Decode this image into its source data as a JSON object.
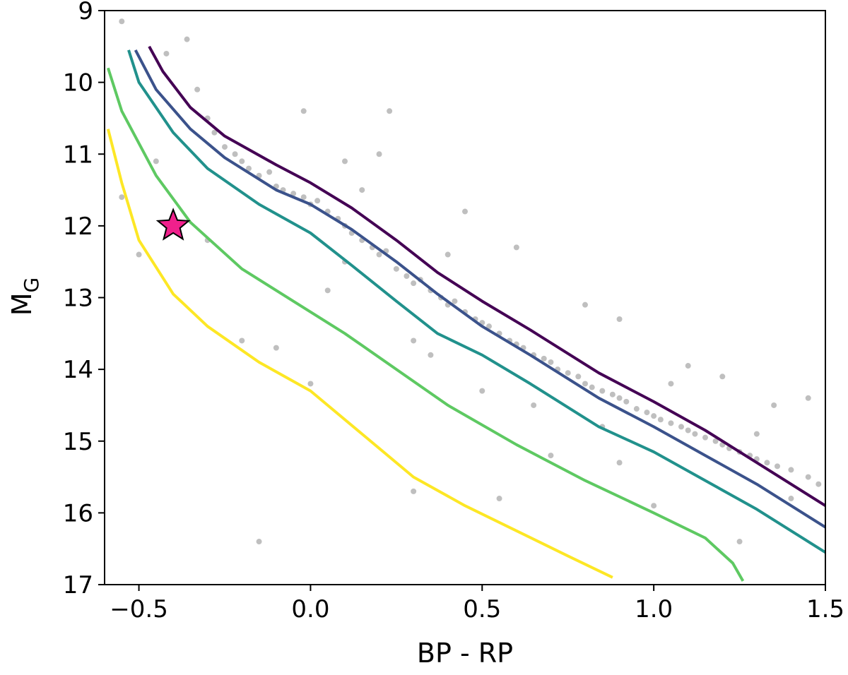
{
  "chart_data": {
    "type": "scatter",
    "xlabel": "BP - RP",
    "ylabel": "M",
    "ylabel_subscript": "G",
    "xlim": [
      -0.6,
      1.5
    ],
    "xticks": [
      {
        "value": -0.5,
        "label": "−0.5"
      },
      {
        "value": 0,
        "label": "0.0"
      },
      0.5,
      {
        "value": 1,
        "label": "1.0"
      },
      1.5
    ],
    "ylim": [
      9,
      17
    ],
    "yticks": [
      9,
      10,
      11,
      12,
      13,
      14,
      15,
      16,
      17
    ],
    "y_inverted": true,
    "points": {
      "color": "#000000",
      "opacity": 0.25,
      "x": [
        -0.55,
        -0.42,
        -0.36,
        -0.33,
        -0.3,
        -0.28,
        -0.25,
        -0.22,
        -0.2,
        -0.18,
        -0.15,
        -0.12,
        -0.1,
        -0.08,
        -0.05,
        -0.02,
        0.0,
        0.02,
        0.05,
        0.08,
        0.1,
        0.12,
        0.15,
        0.18,
        0.2,
        0.22,
        0.25,
        0.28,
        0.3,
        0.32,
        0.35,
        0.38,
        0.4,
        0.42,
        0.45,
        0.48,
        0.5,
        0.52,
        0.55,
        0.58,
        0.6,
        0.62,
        0.65,
        0.68,
        0.7,
        0.72,
        0.75,
        0.78,
        0.8,
        0.82,
        0.85,
        0.88,
        0.9,
        0.92,
        0.95,
        0.98,
        1.0,
        1.02,
        1.05,
        1.08,
        1.1,
        1.12,
        1.15,
        1.18,
        1.2,
        1.22,
        1.25,
        1.28,
        1.3,
        1.33,
        1.36,
        1.4,
        1.45,
        1.48,
        0.23,
        -0.02,
        0.2,
        0.1,
        0.45,
        0.6,
        0.9,
        0.8,
        1.1,
        1.2,
        1.35,
        1.45,
        -0.15,
        0.3,
        0.55,
        -0.1,
        0.0,
        -0.2,
        -0.5,
        -0.55,
        0.1,
        0.3,
        0.5,
        0.7,
        0.9,
        1.0,
        1.25,
        1.4,
        -0.3,
        -0.45,
        0.05,
        0.4,
        0.65,
        0.85,
        1.05,
        1.3,
        0.35,
        0.15
      ],
      "y": [
        9.15,
        9.6,
        9.4,
        10.1,
        10.5,
        10.7,
        10.9,
        11.0,
        11.1,
        11.2,
        11.3,
        11.25,
        11.45,
        11.5,
        11.55,
        11.6,
        11.7,
        11.65,
        11.8,
        11.9,
        12.0,
        12.1,
        12.2,
        12.3,
        12.4,
        12.35,
        12.6,
        12.7,
        12.8,
        12.75,
        12.9,
        13.0,
        13.1,
        13.05,
        13.2,
        13.3,
        13.35,
        13.4,
        13.5,
        13.6,
        13.65,
        13.7,
        13.8,
        13.85,
        13.9,
        14.0,
        14.05,
        14.1,
        14.2,
        14.25,
        14.3,
        14.35,
        14.4,
        14.45,
        14.55,
        14.6,
        14.65,
        14.7,
        14.75,
        14.8,
        14.85,
        14.9,
        14.95,
        15.0,
        15.05,
        15.1,
        15.15,
        15.2,
        15.25,
        15.3,
        15.35,
        15.4,
        15.5,
        15.6,
        10.4,
        10.4,
        11.0,
        11.1,
        11.8,
        12.3,
        13.3,
        13.1,
        13.95,
        14.1,
        14.5,
        14.4,
        16.4,
        15.7,
        15.8,
        13.7,
        14.2,
        13.6,
        12.4,
        11.6,
        12.5,
        13.6,
        14.3,
        15.2,
        15.3,
        15.9,
        16.4,
        15.8,
        12.2,
        11.1,
        12.9,
        12.4,
        14.5,
        14.8,
        14.2,
        14.9,
        13.8,
        11.5
      ]
    },
    "lines": [
      {
        "color": "#440154",
        "x": [
          -0.47,
          -0.43,
          -0.35,
          -0.25,
          -0.1,
          0.0,
          0.12,
          0.25,
          0.37,
          0.5,
          0.64,
          0.84,
          1.0,
          1.15,
          1.3,
          1.5
        ],
        "y": [
          9.5,
          9.85,
          10.35,
          10.75,
          11.15,
          11.4,
          11.75,
          12.2,
          12.65,
          13.05,
          13.45,
          14.05,
          14.45,
          14.85,
          15.3,
          15.9
        ]
      },
      {
        "color": "#3b528b",
        "x": [
          -0.51,
          -0.45,
          -0.35,
          -0.25,
          -0.1,
          0.0,
          0.12,
          0.25,
          0.37,
          0.5,
          0.64,
          0.84,
          1.0,
          1.15,
          1.3,
          1.5
        ],
        "y": [
          9.55,
          10.1,
          10.65,
          11.05,
          11.5,
          11.7,
          12.05,
          12.5,
          12.95,
          13.4,
          13.8,
          14.4,
          14.8,
          15.2,
          15.6,
          16.2
        ]
      },
      {
        "color": "#21918c",
        "x": [
          -0.53,
          -0.5,
          -0.4,
          -0.3,
          -0.15,
          0.0,
          0.12,
          0.25,
          0.37,
          0.5,
          0.64,
          0.84,
          1.0,
          1.15,
          1.3,
          1.5
        ],
        "y": [
          9.55,
          10.0,
          10.7,
          11.2,
          11.7,
          12.1,
          12.55,
          13.05,
          13.5,
          13.8,
          14.2,
          14.8,
          15.15,
          15.55,
          15.95,
          16.55
        ]
      },
      {
        "color": "#5ec962",
        "x": [
          -0.59,
          -0.55,
          -0.45,
          -0.35,
          -0.2,
          -0.05,
          0.1,
          0.25,
          0.4,
          0.6,
          0.8,
          1.0,
          1.15,
          1.23,
          1.26
        ],
        "y": [
          9.8,
          10.4,
          11.3,
          11.95,
          12.6,
          13.05,
          13.5,
          14.0,
          14.5,
          15.05,
          15.55,
          16.0,
          16.35,
          16.7,
          16.95
        ]
      },
      {
        "color": "#fde725",
        "x": [
          -0.59,
          -0.55,
          -0.5,
          -0.4,
          -0.3,
          -0.15,
          0.0,
          0.15,
          0.3,
          0.45,
          0.6,
          0.75,
          0.88
        ],
        "y": [
          10.65,
          11.4,
          12.2,
          12.95,
          13.4,
          13.9,
          14.3,
          14.9,
          15.5,
          15.9,
          16.25,
          16.6,
          16.9
        ]
      }
    ],
    "highlight": {
      "x": -0.4,
      "y": 12.0,
      "color": "#f0208c"
    }
  }
}
